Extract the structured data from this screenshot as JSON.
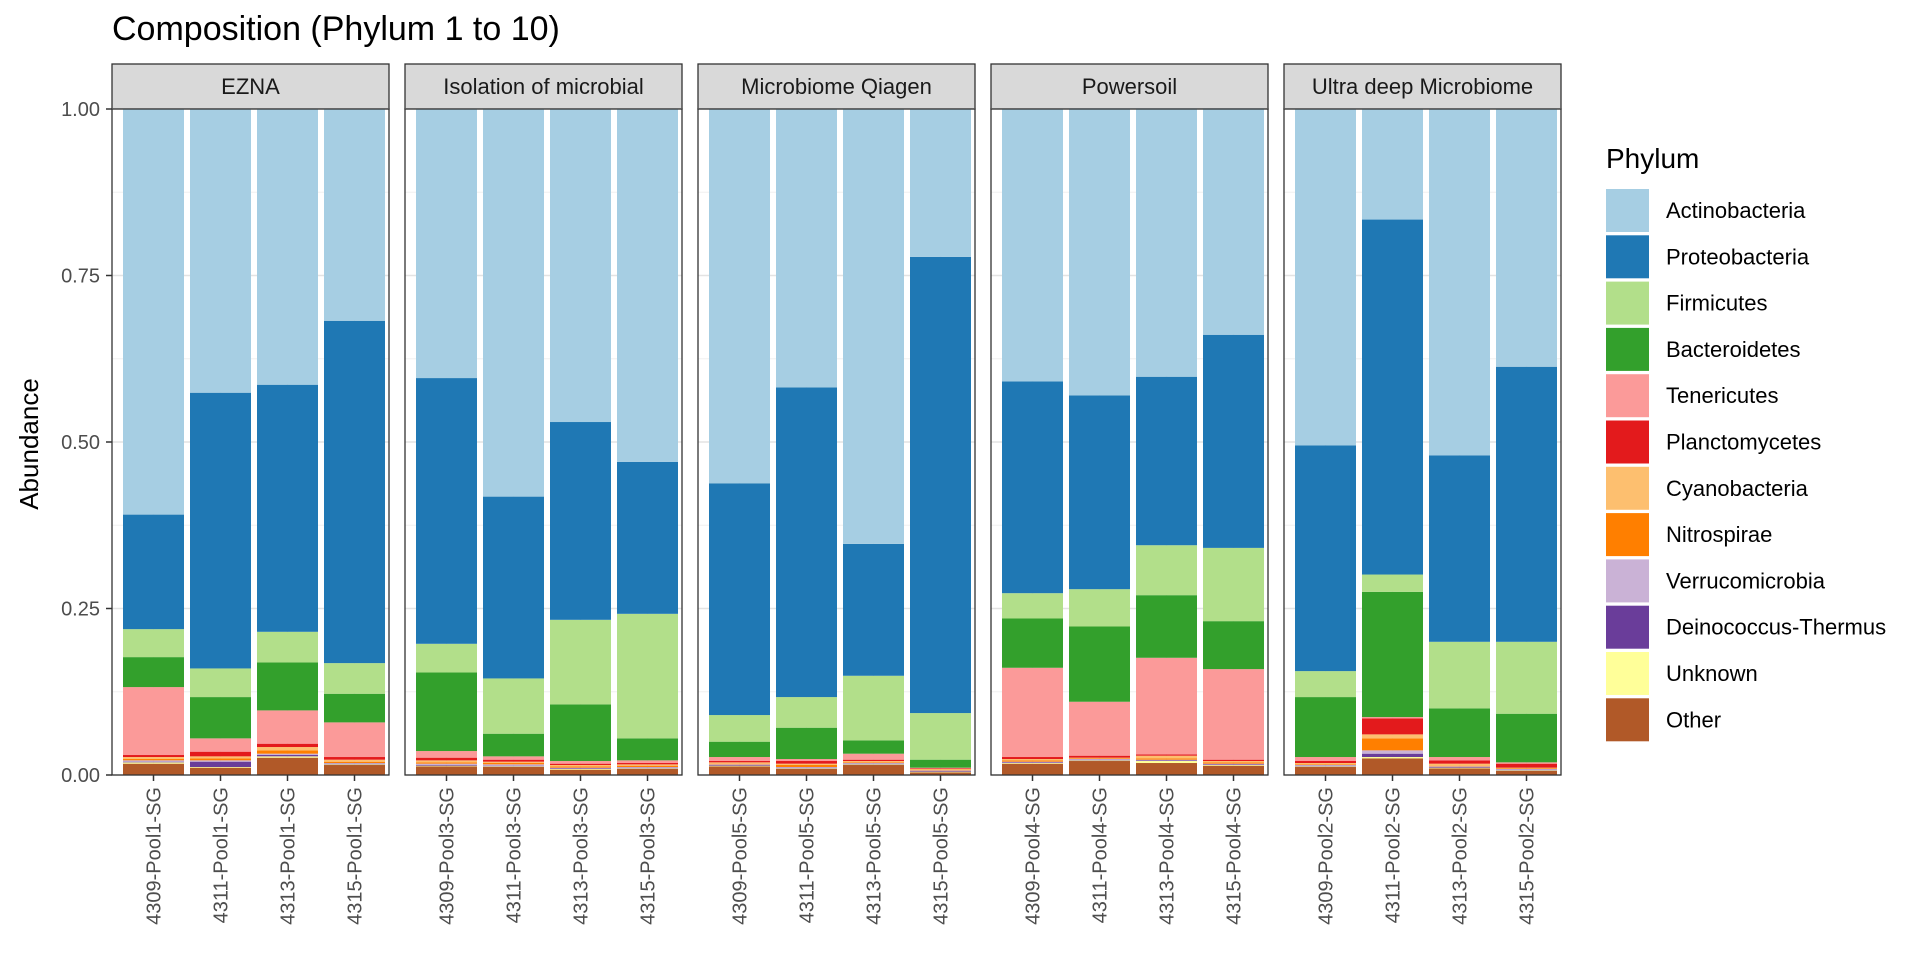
{
  "chart_data": {
    "type": "bar",
    "stacked": true,
    "title": "Composition (Phylum 1 to 10)",
    "xlabel": "",
    "ylabel": "Abundance",
    "ylim": [
      0,
      1
    ],
    "yticks": [
      "0.00",
      "0.25",
      "0.50",
      "0.75",
      "1.00"
    ],
    "grid": true,
    "legend": {
      "title": "Phylum",
      "position": "right",
      "entries": [
        {
          "name": "Actinobacteria",
          "color": "#a6cee3"
        },
        {
          "name": "Proteobacteria",
          "color": "#1f78b4"
        },
        {
          "name": "Firmicutes",
          "color": "#b2df8a"
        },
        {
          "name": "Bacteroidetes",
          "color": "#33a02c"
        },
        {
          "name": "Tenericutes",
          "color": "#fb9a99"
        },
        {
          "name": "Planctomycetes",
          "color": "#e31a1c"
        },
        {
          "name": "Cyanobacteria",
          "color": "#fdbf6f"
        },
        {
          "name": "Nitrospirae",
          "color": "#ff7f00"
        },
        {
          "name": "Verrucomicrobia",
          "color": "#cab2d6"
        },
        {
          "name": "Deinococcus-Thermus",
          "color": "#6a3d9a"
        },
        {
          "name": "Unknown",
          "color": "#ffff99"
        },
        {
          "name": "Other",
          "color": "#b15928"
        }
      ]
    },
    "panels": [
      {
        "name": "EZNA",
        "categories": [
          "4309-Pool1-SG",
          "4311-Pool1-SG",
          "4313-Pool1-SG",
          "4315-Pool1-SG"
        ],
        "series": [
          {
            "name": "Actinobacteria",
            "values": [
              0.609,
              0.426,
              0.414,
              0.318
            ]
          },
          {
            "name": "Proteobacteria",
            "values": [
              0.172,
              0.414,
              0.371,
              0.514
            ]
          },
          {
            "name": "Firmicutes",
            "values": [
              0.042,
              0.043,
              0.046,
              0.046
            ]
          },
          {
            "name": "Bacteroidetes",
            "values": [
              0.045,
              0.062,
              0.072,
              0.043
            ]
          },
          {
            "name": "Tenericutes",
            "values": [
              0.102,
              0.02,
              0.05,
              0.052
            ]
          },
          {
            "name": "Planctomycetes",
            "values": [
              0.003,
              0.007,
              0.005,
              0.004
            ]
          },
          {
            "name": "Cyanobacteria",
            "values": [
              0.003,
              0.003,
              0.005,
              0.003
            ]
          },
          {
            "name": "Nitrospirae",
            "values": [
              0.002,
              0.003,
              0.005,
              0.002
            ]
          },
          {
            "name": "Verrucomicrobia",
            "values": [
              0.002,
              0.002,
              0.002,
              0.001
            ]
          },
          {
            "name": "Deinococcus-Thermus",
            "values": [
              0.001,
              0.008,
              0.002,
              0.001
            ]
          },
          {
            "name": "Unknown",
            "values": [
              0.002,
              0.001,
              0.002,
              0.001
            ]
          },
          {
            "name": "Other",
            "values": [
              0.017,
              0.011,
              0.026,
              0.015
            ]
          }
        ]
      },
      {
        "name": "Isolation of microbial",
        "categories": [
          "4309-Pool3-SG",
          "4311-Pool3-SG",
          "4313-Pool3-SG",
          "4315-Pool3-SG"
        ],
        "series": [
          {
            "name": "Actinobacteria",
            "values": [
              0.404,
              0.582,
              0.47,
              0.53
            ]
          },
          {
            "name": "Proteobacteria",
            "values": [
              0.399,
              0.273,
              0.297,
              0.228
            ]
          },
          {
            "name": "Firmicutes",
            "values": [
              0.043,
              0.083,
              0.127,
              0.187
            ]
          },
          {
            "name": "Bacteroidetes",
            "values": [
              0.118,
              0.034,
              0.085,
              0.033
            ]
          },
          {
            "name": "Tenericutes",
            "values": [
              0.01,
              0.005,
              0.004,
              0.004
            ]
          },
          {
            "name": "Planctomycetes",
            "values": [
              0.004,
              0.003,
              0.002,
              0.002
            ]
          },
          {
            "name": "Cyanobacteria",
            "values": [
              0.003,
              0.002,
              0.002,
              0.002
            ]
          },
          {
            "name": "Nitrospirae",
            "values": [
              0.002,
              0.002,
              0.002,
              0.002
            ]
          },
          {
            "name": "Verrucomicrobia",
            "values": [
              0.002,
              0.002,
              0.001,
              0.001
            ]
          },
          {
            "name": "Deinococcus-Thermus",
            "values": [
              0.001,
              0.001,
              0.001,
              0.001
            ]
          },
          {
            "name": "Unknown",
            "values": [
              0.001,
              0.001,
              0.001,
              0.001
            ]
          },
          {
            "name": "Other",
            "values": [
              0.013,
              0.012,
              0.008,
              0.009
            ]
          }
        ]
      },
      {
        "name": "Microbiome Qiagen",
        "categories": [
          "4309-Pool5-SG",
          "4311-Pool5-SG",
          "4313-Pool5-SG",
          "4315-Pool5-SG"
        ],
        "series": [
          {
            "name": "Actinobacteria",
            "values": [
              0.562,
              0.418,
              0.653,
              0.222
            ]
          },
          {
            "name": "Proteobacteria",
            "values": [
              0.348,
              0.465,
              0.198,
              0.685
            ]
          },
          {
            "name": "Firmicutes",
            "values": [
              0.04,
              0.046,
              0.097,
              0.07
            ]
          },
          {
            "name": "Bacteroidetes",
            "values": [
              0.023,
              0.047,
              0.02,
              0.012
            ]
          },
          {
            "name": "Tenericutes",
            "values": [
              0.006,
              0.003,
              0.009,
              0.001
            ]
          },
          {
            "name": "Planctomycetes",
            "values": [
              0.002,
              0.004,
              0.002,
              0.001
            ]
          },
          {
            "name": "Cyanobacteria",
            "values": [
              0.002,
              0.002,
              0.002,
              0.001
            ]
          },
          {
            "name": "Nitrospirae",
            "values": [
              0.001,
              0.003,
              0.001,
              0.001
            ]
          },
          {
            "name": "Verrucomicrobia",
            "values": [
              0.001,
              0.001,
              0.001,
              0.001
            ]
          },
          {
            "name": "Deinococcus-Thermus",
            "values": [
              0.001,
              0.001,
              0.001,
              0.001
            ]
          },
          {
            "name": "Unknown",
            "values": [
              0.001,
              0.001,
              0.001,
              0.001
            ]
          },
          {
            "name": "Other",
            "values": [
              0.013,
              0.009,
              0.015,
              0.004
            ]
          }
        ]
      },
      {
        "name": "Powersoil",
        "categories": [
          "4309-Pool4-SG",
          "4311-Pool4-SG",
          "4313-Pool4-SG",
          "4315-Pool4-SG"
        ],
        "series": [
          {
            "name": "Actinobacteria",
            "values": [
              0.409,
              0.431,
              0.403,
              0.34
            ]
          },
          {
            "name": "Proteobacteria",
            "values": [
              0.318,
              0.291,
              0.253,
              0.32
            ]
          },
          {
            "name": "Firmicutes",
            "values": [
              0.038,
              0.056,
              0.075,
              0.11
            ]
          },
          {
            "name": "Bacteroidetes",
            "values": [
              0.074,
              0.113,
              0.094,
              0.072
            ]
          },
          {
            "name": "Tenericutes",
            "values": [
              0.134,
              0.081,
              0.145,
              0.136
            ]
          },
          {
            "name": "Planctomycetes",
            "values": [
              0.003,
              0.003,
              0.002,
              0.002
            ]
          },
          {
            "name": "Cyanobacteria",
            "values": [
              0.002,
              0.001,
              0.004,
              0.002
            ]
          },
          {
            "name": "Nitrospirae",
            "values": [
              0.002,
              0.001,
              0.002,
              0.002
            ]
          },
          {
            "name": "Verrucomicrobia",
            "values": [
              0.001,
              0.001,
              0.001,
              0.001
            ]
          },
          {
            "name": "Deinococcus-Thermus",
            "values": [
              0.001,
              0.001,
              0.001,
              0.001
            ]
          },
          {
            "name": "Unknown",
            "values": [
              0.001,
              0.001,
              0.003,
              0.001
            ]
          },
          {
            "name": "Other",
            "values": [
              0.017,
              0.021,
              0.018,
              0.014
            ]
          }
        ]
      },
      {
        "name": "Ultra deep Microbiome",
        "categories": [
          "4309-Pool2-SG",
          "4311-Pool2-SG",
          "4313-Pool2-SG",
          "4315-Pool2-SG"
        ],
        "series": [
          {
            "name": "Actinobacteria",
            "values": [
              0.505,
              0.166,
              0.52,
              0.387
            ]
          },
          {
            "name": "Proteobacteria",
            "values": [
              0.339,
              0.533,
              0.28,
              0.413
            ]
          },
          {
            "name": "Firmicutes",
            "values": [
              0.039,
              0.026,
              0.1,
              0.108
            ]
          },
          {
            "name": "Bacteroidetes",
            "values": [
              0.09,
              0.188,
              0.073,
              0.073
            ]
          },
          {
            "name": "Tenericutes",
            "values": [
              0.006,
              0.002,
              0.005,
              0.002
            ]
          },
          {
            "name": "Planctomycetes",
            "values": [
              0.003,
              0.024,
              0.005,
              0.006
            ]
          },
          {
            "name": "Cyanobacteria",
            "values": [
              0.002,
              0.006,
              0.003,
              0.001
            ]
          },
          {
            "name": "Nitrospirae",
            "values": [
              0.001,
              0.018,
              0.001,
              0.001
            ]
          },
          {
            "name": "Verrucomicrobia",
            "values": [
              0.001,
              0.005,
              0.001,
              0.001
            ]
          },
          {
            "name": "Deinococcus-Thermus",
            "values": [
              0.001,
              0.005,
              0.001,
              0.001
            ]
          },
          {
            "name": "Unknown",
            "values": [
              0.001,
              0.002,
              0.001,
              0.001
            ]
          },
          {
            "name": "Other",
            "values": [
              0.012,
              0.025,
              0.01,
              0.006
            ]
          }
        ]
      }
    ]
  }
}
